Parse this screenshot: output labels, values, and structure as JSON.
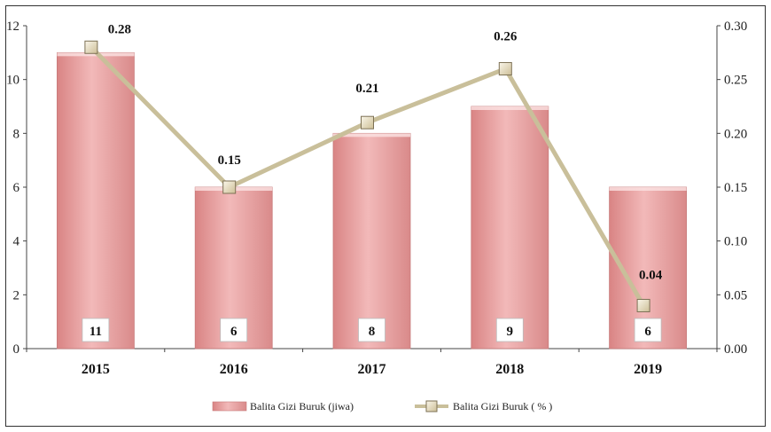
{
  "chart_data": {
    "type": "bar",
    "categories": [
      "2015",
      "2016",
      "2017",
      "2018",
      "2019"
    ],
    "series": [
      {
        "name": "Balita Gizi Buruk (jiwa)",
        "kind": "bar",
        "axis": "left",
        "values": [
          11,
          6,
          8,
          9,
          6
        ],
        "data_labels": [
          "11",
          "6",
          "8",
          "9",
          "6"
        ],
        "color": "#e8a0a0"
      },
      {
        "name": "Balita Gizi Buruk ( % )",
        "kind": "line",
        "axis": "right",
        "values": [
          0.28,
          0.15,
          0.21,
          0.26,
          0.04
        ],
        "data_labels": [
          "0.28",
          "0.15",
          "0.21",
          "0.26",
          "0.04"
        ],
        "color": "#c9bf9a"
      }
    ],
    "y_left": {
      "ylim": [
        0,
        12
      ],
      "ticks": [
        "0",
        "2",
        "4",
        "6",
        "8",
        "10",
        "12"
      ]
    },
    "y_right": {
      "ylim": [
        0,
        0.3
      ],
      "ticks": [
        "0.00",
        "0.05",
        "0.10",
        "0.15",
        "0.20",
        "0.25",
        "0.30"
      ]
    },
    "grid": false,
    "legend": "bottom"
  }
}
